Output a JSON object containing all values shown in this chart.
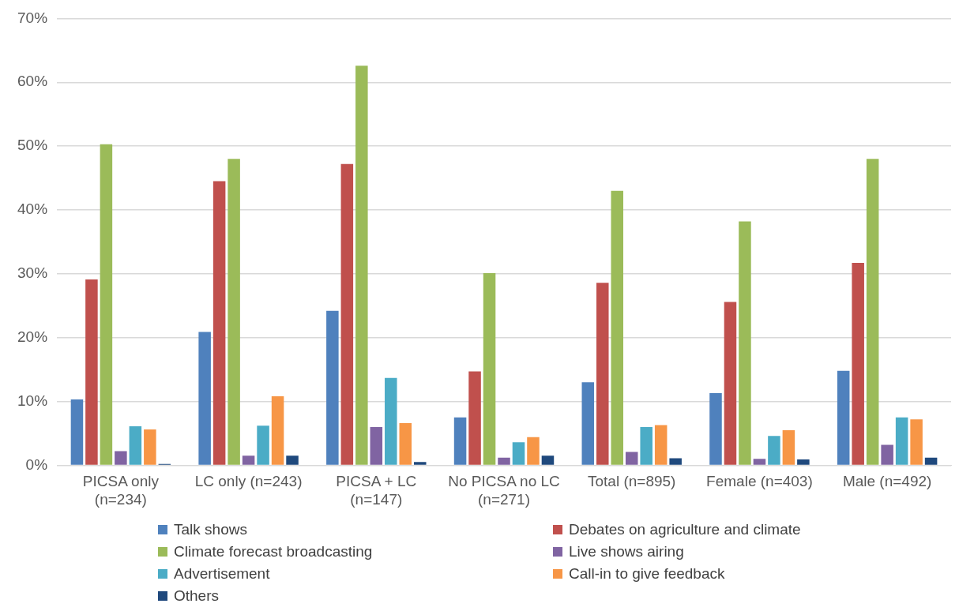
{
  "chart_data": {
    "type": "bar",
    "categories": [
      "PICSA only (n=234)",
      "LC only (n=243)",
      "PICSA + LC (n=147)",
      "No PICSA no LC (n=271)",
      "Total (n=895)",
      "Female (n=403)",
      "Male (n=492)"
    ],
    "series": [
      {
        "name": "Talk shows",
        "color": "#4f81bd",
        "values": [
          10.3,
          20.9,
          24.2,
          7.5,
          13.0,
          11.3,
          14.8
        ]
      },
      {
        "name": "Debates on agriculture and climate",
        "color": "#c0504d",
        "values": [
          29.1,
          44.5,
          47.2,
          14.7,
          28.6,
          25.6,
          31.7
        ]
      },
      {
        "name": "Climate forecast broadcasting",
        "color": "#9bbb59",
        "values": [
          50.3,
          48.0,
          62.6,
          30.1,
          43.0,
          38.2,
          48.0
        ]
      },
      {
        "name": "Live shows airing",
        "color": "#8064a2",
        "values": [
          2.2,
          1.5,
          6.0,
          1.2,
          2.1,
          1.0,
          3.2
        ]
      },
      {
        "name": "Advertisement",
        "color": "#4bacc6",
        "values": [
          6.1,
          6.2,
          13.7,
          3.6,
          6.0,
          4.6,
          7.5
        ]
      },
      {
        "name": "Call-in to give feedback",
        "color": "#f79646",
        "values": [
          5.6,
          10.8,
          6.6,
          4.4,
          6.3,
          5.5,
          7.2
        ]
      },
      {
        "name": "Others",
        "color": "#1f497d",
        "values": [
          0.2,
          1.5,
          0.5,
          1.5,
          1.1,
          0.9,
          1.2
        ]
      }
    ],
    "ylim": [
      0,
      70
    ],
    "yticks": [
      {
        "value": 0,
        "label": "0%"
      },
      {
        "value": 10,
        "label": "10%"
      },
      {
        "value": 20,
        "label": "20%"
      },
      {
        "value": 30,
        "label": "30%"
      },
      {
        "value": 40,
        "label": "40%"
      },
      {
        "value": 50,
        "label": "50%"
      },
      {
        "value": 60,
        "label": "60%"
      },
      {
        "value": 70,
        "label": "70%"
      }
    ],
    "grid": "y",
    "legend": "bottom"
  }
}
